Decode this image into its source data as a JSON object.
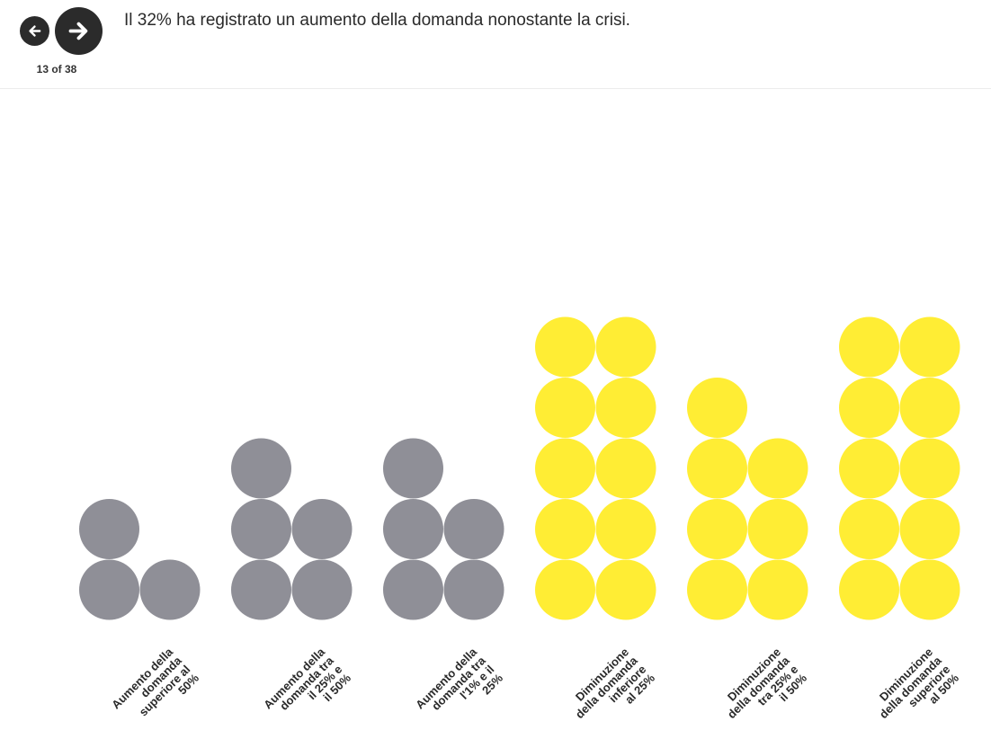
{
  "nav": {
    "prev_icon": "arrow-left-icon",
    "next_icon": "arrow-right-icon",
    "counter": "13 of 38"
  },
  "headline": "Il 32% ha registrato un aumento della domanda nonostante la crisi.",
  "colors": {
    "increase": "#8f8f97",
    "decrease": "#ffed34",
    "button": "#2b2b2b"
  },
  "chart_data": {
    "type": "unit-dot-columns",
    "title": "",
    "grid": false,
    "legend": "none",
    "categories": [
      {
        "label": [
          "Aumento della",
          "domanda",
          "superiore al",
          "50%"
        ],
        "value": 3,
        "group": "increase"
      },
      {
        "label": [
          "Aumento della",
          "domanda tra",
          "il 25% e",
          "il 50%"
        ],
        "value": 5,
        "group": "increase"
      },
      {
        "label": [
          "Aumento della",
          "domanda tra",
          "l'1% e il",
          "25%"
        ],
        "value": 5,
        "group": "increase"
      },
      {
        "label": [
          "Diminuzione",
          "della domanda",
          "inferiore",
          "al 25%"
        ],
        "value": 10,
        "group": "decrease"
      },
      {
        "label": [
          "Diminuzione",
          "della domanda",
          "tra 25% e",
          "il 50%"
        ],
        "value": 7,
        "group": "decrease"
      },
      {
        "label": [
          "Diminuzione",
          "della domanda",
          "superiore",
          "al 50%"
        ],
        "value": 10,
        "group": "decrease"
      }
    ]
  }
}
